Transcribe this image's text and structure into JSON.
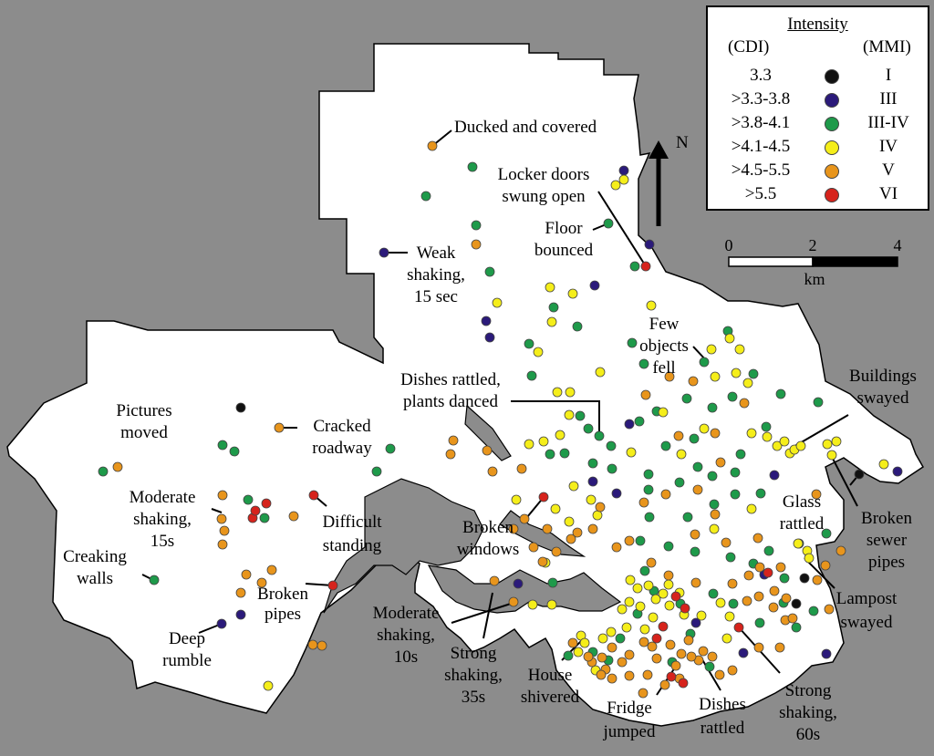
{
  "legend": {
    "title": "Intensity",
    "cdi_header": "(CDI)",
    "mmi_header": "(MMI)",
    "rows": [
      {
        "cdi": "3.3",
        "mmi": "I",
        "color": "#111111"
      },
      {
        "cdi": ">3.3-3.8",
        "mmi": "III",
        "color": "#2b1a7a"
      },
      {
        "cdi": ">3.8-4.1",
        "mmi": "III-IV",
        "color": "#1e9a4a"
      },
      {
        "cdi": ">4.1-4.5",
        "mmi": "IV",
        "color": "#f5ee1a"
      },
      {
        "cdi": ">4.5-5.5",
        "mmi": "V",
        "color": "#e8951c"
      },
      {
        "cdi": ">5.5",
        "mmi": "VI",
        "color": "#d6231c"
      }
    ]
  },
  "north_arrow": {
    "label": "N"
  },
  "scale_bar": {
    "ticks": [
      "0",
      "2",
      "4"
    ],
    "unit": "km"
  },
  "annotations": [
    {
      "id": "ducked",
      "lines": [
        "Ducked and covered"
      ]
    },
    {
      "id": "locker",
      "lines": [
        "Locker doors",
        "swung open"
      ]
    },
    {
      "id": "floor",
      "lines": [
        "Floor",
        "bounced"
      ]
    },
    {
      "id": "weak",
      "lines": [
        "Weak",
        "shaking,",
        "15 sec"
      ]
    },
    {
      "id": "fewobj",
      "lines": [
        "Few",
        "objects",
        "fell"
      ]
    },
    {
      "id": "dishes1",
      "lines": [
        "Dishes rattled,",
        "plants danced"
      ]
    },
    {
      "id": "bldg",
      "lines": [
        "Buildings",
        "swayed"
      ]
    },
    {
      "id": "pictures",
      "lines": [
        "Pictures",
        "moved"
      ]
    },
    {
      "id": "cracked",
      "lines": [
        "Cracked",
        "roadway"
      ]
    },
    {
      "id": "modshake15",
      "lines": [
        "Moderate",
        "shaking,",
        "15s"
      ]
    },
    {
      "id": "difficult",
      "lines": [
        "Difficult",
        "standing"
      ]
    },
    {
      "id": "broken_win",
      "lines": [
        "Broken",
        "windows"
      ]
    },
    {
      "id": "glass",
      "lines": [
        "Glass",
        "rattled"
      ]
    },
    {
      "id": "sewer",
      "lines": [
        "Broken",
        "sewer",
        "pipes"
      ]
    },
    {
      "id": "creaking",
      "lines": [
        "Creaking",
        "walls"
      ]
    },
    {
      "id": "pipes",
      "lines": [
        "Broken",
        "pipes"
      ]
    },
    {
      "id": "lampost",
      "lines": [
        "Lampost",
        "swayed"
      ]
    },
    {
      "id": "modshake10",
      "lines": [
        "Moderate",
        "shaking,",
        "10s"
      ]
    },
    {
      "id": "strong35",
      "lines": [
        "Strong",
        "shaking,",
        "35s"
      ]
    },
    {
      "id": "house",
      "lines": [
        "House",
        "shivered"
      ]
    },
    {
      "id": "rumble",
      "lines": [
        "Deep",
        "rumble"
      ]
    },
    {
      "id": "fridge",
      "lines": [
        "Fridge",
        "jumped"
      ]
    },
    {
      "id": "dishes2",
      "lines": [
        "Dishes",
        "rattled"
      ]
    },
    {
      "id": "strong60",
      "lines": [
        "Strong",
        "shaking,",
        "60s"
      ]
    }
  ]
}
